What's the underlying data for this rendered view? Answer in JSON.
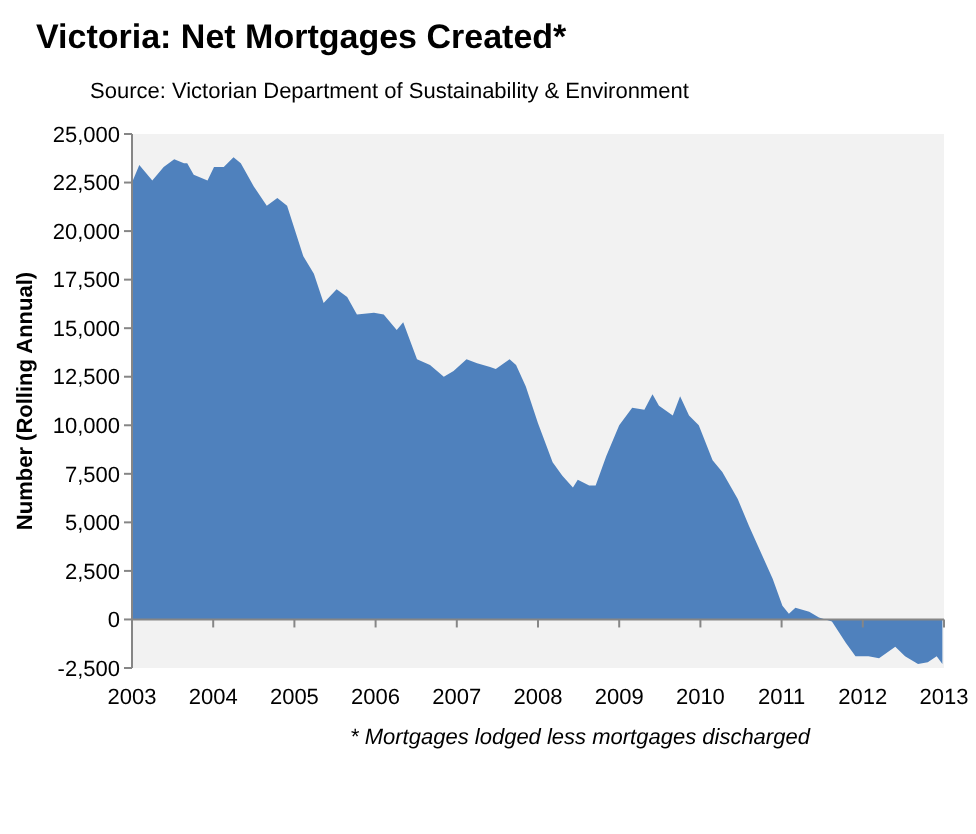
{
  "chart_data": {
    "type": "area",
    "title": "Victoria: Net Mortgages Created*",
    "subtitle": "Source: Victorian Department of Sustainability & Environment",
    "ylabel": "Number (Rolling Annual)",
    "annotations": [
      "* Mortgages lodged less mortgages discharged"
    ],
    "x": [
      2003.0,
      2003.09,
      2003.25,
      2003.39,
      2003.52,
      2003.64,
      2003.68,
      2003.76,
      2003.93,
      2004.01,
      2004.13,
      2004.25,
      2004.34,
      2004.5,
      2004.66,
      2004.79,
      2004.91,
      2005.11,
      2005.24,
      2005.36,
      2005.52,
      2005.65,
      2005.77,
      2005.98,
      2006.1,
      2006.26,
      2006.34,
      2006.51,
      2006.67,
      2006.84,
      2006.96,
      2007.12,
      2007.25,
      2007.41,
      2007.48,
      2007.65,
      2007.73,
      2007.85,
      2008.0,
      2008.18,
      2008.3,
      2008.43,
      2008.49,
      2008.63,
      2008.71,
      2008.84,
      2009.0,
      2009.16,
      2009.31,
      2009.41,
      2009.49,
      2009.66,
      2009.75,
      2009.86,
      2009.98,
      2010.15,
      2010.27,
      2010.46,
      2010.6,
      2010.76,
      2010.89,
      2011.01,
      2011.09,
      2011.17,
      2011.34,
      2011.46,
      2011.62,
      2011.79,
      2011.91,
      2012.07,
      2012.2,
      2012.4,
      2012.52,
      2012.68,
      2012.8,
      2012.91,
      2012.98
    ],
    "series": [
      {
        "color": "#4f81bd",
        "values": [
          22500,
          23400,
          22600,
          23300,
          23700,
          23500,
          23500,
          22900,
          22600,
          23300,
          23300,
          23800,
          23500,
          22300,
          21300,
          21700,
          21300,
          18700,
          17800,
          16300,
          17000,
          16600,
          15700,
          15800,
          15700,
          14900,
          15300,
          13400,
          13100,
          12500,
          12800,
          13400,
          13200,
          13000,
          12900,
          13400,
          13100,
          12000,
          10100,
          8100,
          7400,
          6800,
          7200,
          6900,
          6900,
          8400,
          10000,
          10900,
          10800,
          11600,
          11000,
          10500,
          11500,
          10500,
          10000,
          8200,
          7600,
          6200,
          4800,
          3300,
          2100,
          700,
          300,
          600,
          400,
          100,
          -100,
          -1200,
          -1900,
          -1900,
          -2000,
          -1400,
          -1900,
          -2300,
          -2200,
          -1900,
          -2300
        ]
      }
    ],
    "xlim": [
      2003,
      2013
    ],
    "xticks": [
      2003,
      2004,
      2005,
      2006,
      2007,
      2008,
      2009,
      2010,
      2011,
      2012,
      2013
    ],
    "ylim": [
      -2500,
      25000
    ],
    "yticks": [
      {
        "value": 25000,
        "label": "25,000"
      },
      {
        "value": 22500,
        "label": "22,500"
      },
      {
        "value": 20000,
        "label": "20,000"
      },
      {
        "value": 17500,
        "label": "17,500"
      },
      {
        "value": 15000,
        "label": "15,000"
      },
      {
        "value": 12500,
        "label": "12,500"
      },
      {
        "value": 10000,
        "label": "10,000"
      },
      {
        "value": 7500,
        "label": "7,500"
      },
      {
        "value": 5000,
        "label": "5,000"
      },
      {
        "value": 2500,
        "label": "2,500"
      },
      0,
      {
        "value": -2500,
        "label": "-2,500"
      }
    ]
  }
}
